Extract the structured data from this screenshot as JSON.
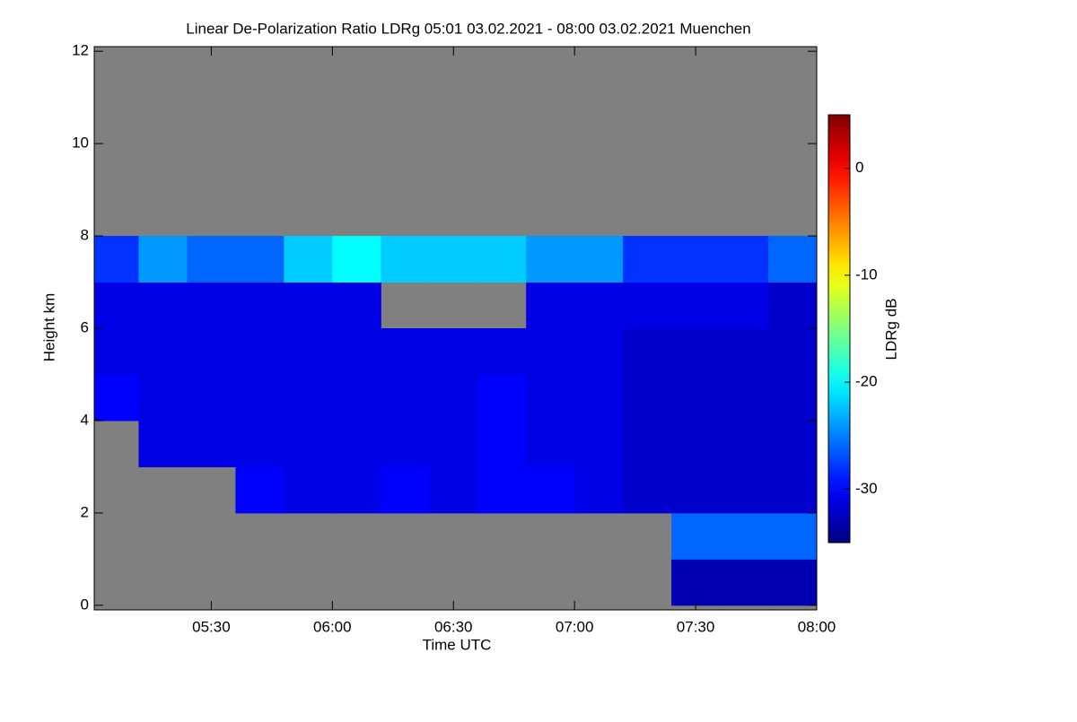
{
  "chart_data": {
    "type": "heatmap",
    "title": "Linear De-Polarization Ratio LDRg   05:01 03.02.2021 - 08:00 03.02.2021 Muenchen",
    "x_label": "Time UTC",
    "y_label": "Height km",
    "colorbar_label": "LDRg dB",
    "xlim": [
      5.0167,
      8.0
    ],
    "xticks": [
      {
        "value": 5.5,
        "label": "05:30"
      },
      {
        "value": 6.0,
        "label": "06:00"
      },
      {
        "value": 6.5,
        "label": "06:30"
      },
      {
        "value": 7.0,
        "label": "07:00"
      },
      {
        "value": 7.5,
        "label": "07:30"
      },
      {
        "value": 8.0,
        "label": "08:00"
      }
    ],
    "ylim": [
      -0.1,
      12.1
    ],
    "yticks": [
      0,
      2,
      4,
      6,
      8,
      10,
      12
    ],
    "clim": [
      -35,
      5
    ],
    "cticks": [
      0,
      -10,
      -20,
      -30
    ],
    "colormap": "jet",
    "missing_color": "#808080",
    "x_bins": [
      5.0,
      5.2,
      5.4,
      5.6,
      5.8,
      6.0,
      6.2,
      6.4,
      6.6,
      6.8,
      7.0,
      7.2,
      7.4,
      7.6,
      7.8,
      8.0
    ],
    "y_bins": [
      0,
      1,
      2,
      3,
      4,
      5,
      6,
      7,
      8,
      9,
      10,
      11,
      12
    ],
    "values": [
      [
        null,
        null,
        null,
        null,
        null,
        null,
        null,
        null,
        null,
        null,
        null,
        null,
        -33,
        -33,
        -33
      ],
      [
        null,
        null,
        null,
        null,
        null,
        null,
        null,
        null,
        null,
        null,
        null,
        null,
        -26,
        -26,
        -26
      ],
      [
        null,
        null,
        null,
        -30,
        -31,
        -31,
        -30,
        -31,
        -30,
        -30,
        -31,
        -32,
        -32,
        -32,
        -32
      ],
      [
        null,
        -31,
        -31,
        -31,
        -31,
        -31,
        -31,
        -31,
        -30,
        -31,
        -31,
        -32,
        -32,
        -32,
        -32
      ],
      [
        -30,
        -31,
        -31,
        -31,
        -31,
        -31,
        -31,
        -31,
        -30,
        -31,
        -31,
        -32,
        -32,
        -32,
        -32
      ],
      [
        -31,
        -31,
        -31,
        -31,
        -31,
        -31,
        -31,
        -31,
        -31,
        -31,
        -31,
        -32,
        -32,
        -32,
        -32
      ],
      [
        -31,
        -31,
        -31,
        -31,
        -31,
        -31,
        null,
        null,
        null,
        -31,
        -31,
        -31,
        -31,
        -31,
        -32
      ],
      [
        -28,
        -24,
        -26,
        -26,
        -22,
        -20,
        -22,
        -22,
        -22,
        -24,
        -24,
        -28,
        -28,
        -28,
        -26
      ],
      [
        null,
        null,
        null,
        null,
        null,
        null,
        null,
        null,
        null,
        null,
        null,
        null,
        null,
        null,
        null
      ],
      [
        null,
        null,
        null,
        null,
        null,
        null,
        null,
        null,
        null,
        null,
        null,
        null,
        null,
        null,
        null
      ],
      [
        null,
        null,
        null,
        null,
        null,
        null,
        null,
        null,
        null,
        null,
        null,
        null,
        null,
        null,
        null
      ],
      [
        null,
        null,
        null,
        null,
        null,
        null,
        null,
        null,
        null,
        null,
        null,
        null,
        null,
        null,
        null
      ]
    ]
  }
}
